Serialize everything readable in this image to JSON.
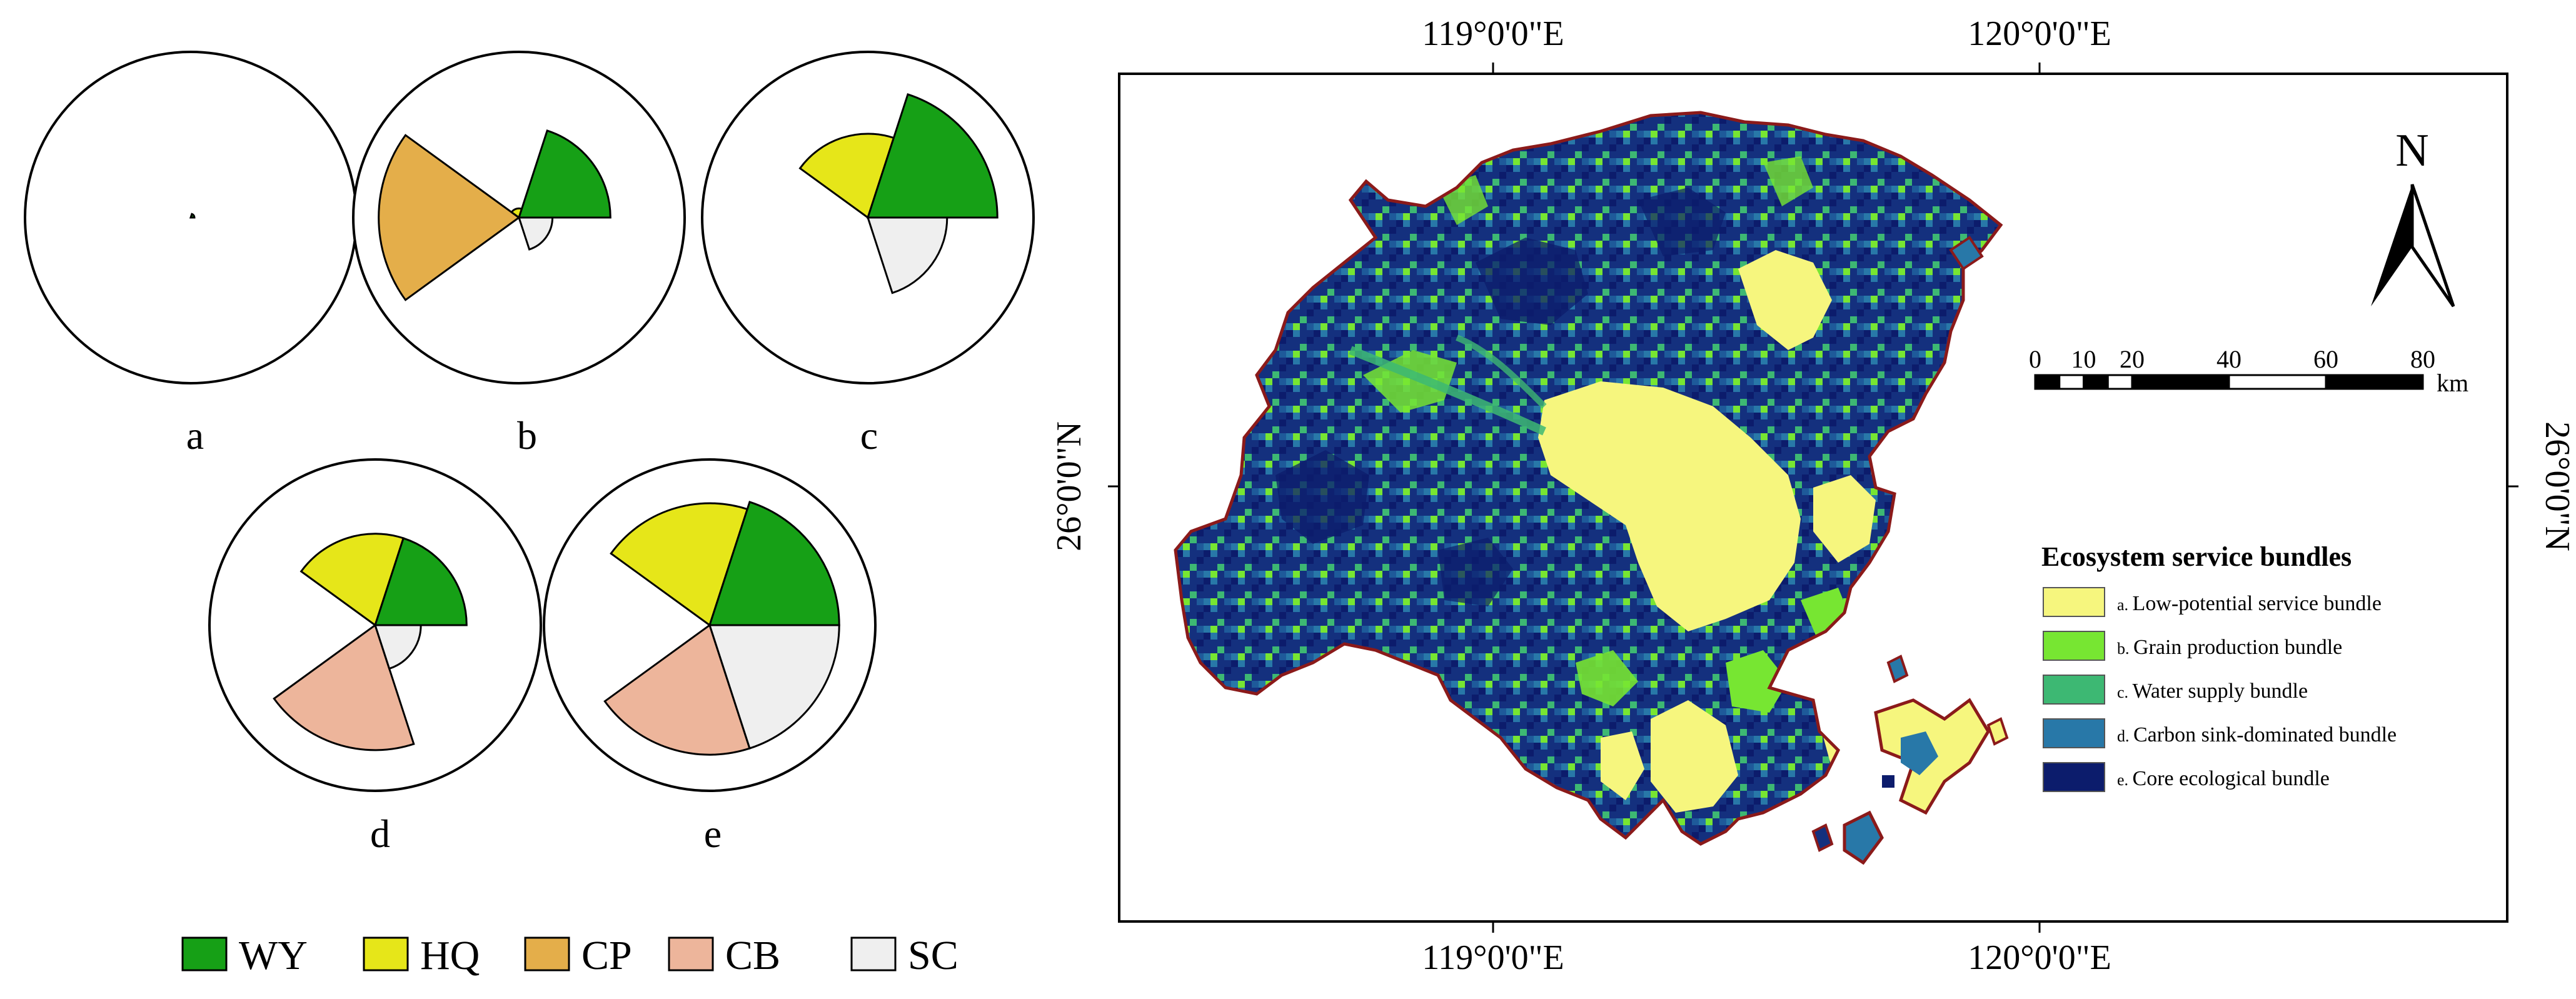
{
  "figure": {
    "rose_charts": [
      {
        "id": "a",
        "label": "a",
        "values": {
          "WY": 0.02,
          "HQ": 0.0,
          "CP": 0.0,
          "CB": 0.0,
          "SC": 0.0
        }
      },
      {
        "id": "b",
        "label": "b",
        "values": {
          "WY": 0.6,
          "HQ": 0.06,
          "CP": 0.92,
          "CB": 0.0,
          "SC": 0.22
        }
      },
      {
        "id": "c",
        "label": "c",
        "values": {
          "WY": 0.85,
          "HQ": 0.55,
          "CP": 0.0,
          "CB": 0.0,
          "SC": 0.52
        }
      },
      {
        "id": "d",
        "label": "d",
        "values": {
          "WY": 0.6,
          "HQ": 0.6,
          "CP": 0.0,
          "CB": 0.82,
          "SC": 0.3
        }
      },
      {
        "id": "e",
        "label": "e",
        "values": {
          "WY": 0.85,
          "HQ": 0.8,
          "CP": 0.0,
          "CB": 0.85,
          "SC": 0.85
        }
      }
    ],
    "service_legend": [
      {
        "code": "WY",
        "label": "WY",
        "color": "#16A016"
      },
      {
        "code": "HQ",
        "label": "HQ",
        "color": "#E6E619"
      },
      {
        "code": "CP",
        "label": "CP",
        "color": "#E4AE4A"
      },
      {
        "code": "CB",
        "label": "CB",
        "color": "#EDB59B"
      },
      {
        "code": "SC",
        "label": "SC",
        "color": "#EFEFEF"
      }
    ]
  },
  "map": {
    "top_axis_labels": [
      "119°0'0\"E",
      "120°0'0\"E"
    ],
    "bottom_axis_labels": [
      "119°0'0\"E",
      "120°0'0\"E"
    ],
    "left_axis_label": "26°0'0\"N",
    "right_axis_label": "26°0'0\"N",
    "north_arrow_label": "N",
    "scale_bar": {
      "ticks": [
        "0",
        "10",
        "20",
        "40",
        "60",
        "80"
      ],
      "unit": "km"
    },
    "legend": {
      "title": "Ecosystem service bundles",
      "items": [
        {
          "prefix": "a.",
          "label": "Low-potential service bundle",
          "color": "#F6F67E"
        },
        {
          "prefix": "b.",
          "label": "Grain production bundle",
          "color": "#77E632"
        },
        {
          "prefix": "c.",
          "label": "Water supply bundle",
          "color": "#3DB873"
        },
        {
          "prefix": "d.",
          "label": "Carbon sink-dominated bundle",
          "color": "#2878A8"
        },
        {
          "prefix": "e.",
          "label": "Core ecological bundle",
          "color": "#0C1C6C"
        }
      ]
    },
    "boundary_color": "#8B1A1A"
  }
}
